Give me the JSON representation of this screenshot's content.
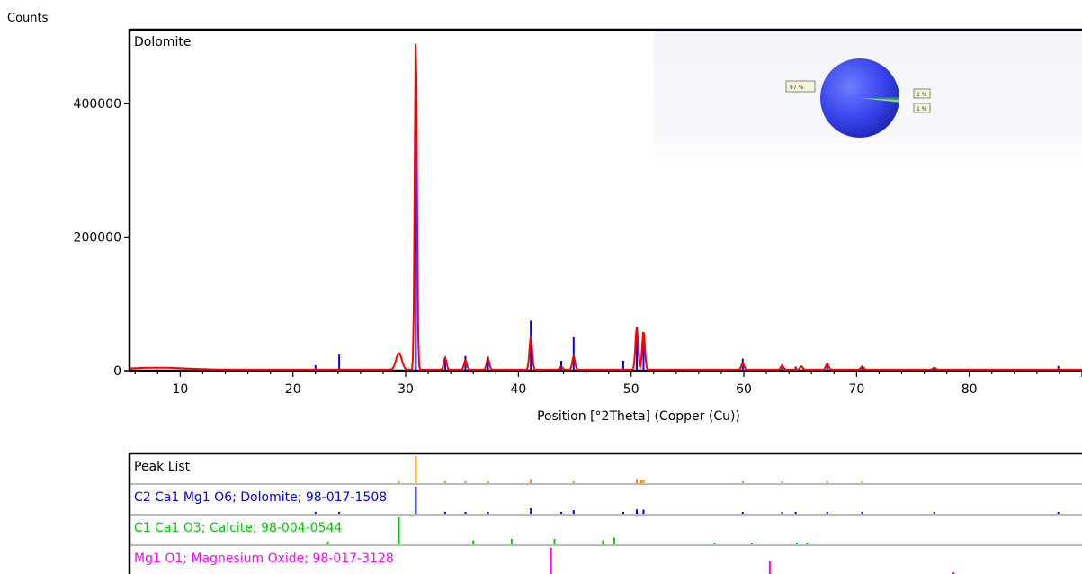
{
  "chart_data": {
    "type": "line",
    "title": "Dolomite",
    "ylabel": "Counts",
    "xlabel": "Position [°2Theta] (Copper (Cu))",
    "xlim": [
      5.5,
      90
    ],
    "ylim": [
      0,
      500000
    ],
    "x_ticks": [
      10,
      20,
      30,
      40,
      50,
      60,
      70,
      80
    ],
    "y_ticks": [
      0,
      200000,
      400000
    ],
    "grid": false,
    "observed_pattern": {
      "color": "#ff0000",
      "peaks": [
        {
          "x": 8.0,
          "y": 3000,
          "w": 2.5
        },
        {
          "x": 29.4,
          "y": 25000,
          "w": 0.25
        },
        {
          "x": 30.9,
          "y": 505000,
          "w": 0.1
        },
        {
          "x": 33.5,
          "y": 18000,
          "w": 0.12
        },
        {
          "x": 35.3,
          "y": 14000,
          "w": 0.12
        },
        {
          "x": 37.3,
          "y": 17000,
          "w": 0.12
        },
        {
          "x": 41.1,
          "y": 50000,
          "w": 0.12
        },
        {
          "x": 43.8,
          "y": 5000,
          "w": 0.12
        },
        {
          "x": 44.9,
          "y": 20000,
          "w": 0.12
        },
        {
          "x": 50.5,
          "y": 64000,
          "w": 0.12
        },
        {
          "x": 51.1,
          "y": 58000,
          "w": 0.12
        },
        {
          "x": 59.9,
          "y": 10000,
          "w": 0.12
        },
        {
          "x": 63.4,
          "y": 6000,
          "w": 0.12
        },
        {
          "x": 65.1,
          "y": 5000,
          "w": 0.12
        },
        {
          "x": 67.4,
          "y": 9000,
          "w": 0.12
        },
        {
          "x": 70.5,
          "y": 5000,
          "w": 0.12
        },
        {
          "x": 76.9,
          "y": 3000,
          "w": 0.12
        }
      ]
    },
    "calculated_lines": {
      "color": "#0000ff",
      "x": [
        22.0,
        24.1,
        30.9,
        33.5,
        35.3,
        37.3,
        41.1,
        43.8,
        44.9,
        49.3,
        50.5,
        51.1,
        59.9,
        63.4,
        64.6,
        67.4,
        70.5,
        76.9,
        87.9
      ],
      "y": [
        8000,
        24000,
        408000,
        17000,
        22000,
        21000,
        75000,
        15000,
        50000,
        15000,
        60000,
        55000,
        18000,
        10000,
        6000,
        8000,
        7000,
        4000,
        7000
      ]
    },
    "inset_pie": {
      "labels": [
        "97 %",
        "1 %",
        "1 %"
      ],
      "values": [
        97,
        1,
        1
      ],
      "colors": [
        "#3a46ee",
        "#3b8f5a",
        "#7fd6a0"
      ]
    },
    "peak_list_panel": {
      "rows": [
        {
          "label": "Peak List",
          "color": "#000000",
          "line_color": "#ff8c00",
          "x": [
            30.9,
            41.1,
            50.5,
            50.9,
            51.1,
            29.4,
            33.5,
            35.3,
            37.3,
            44.9,
            59.9,
            63.4,
            67.4,
            70.5
          ],
          "h": [
            1.0,
            0.15,
            0.15,
            0.12,
            0.14,
            0.06,
            0.05,
            0.05,
            0.05,
            0.06,
            0.05,
            0.04,
            0.04,
            0.04
          ]
        },
        {
          "label": "C2 Ca1 Mg1 O6; Dolomite; 98-017-1508",
          "color": "#0000ff",
          "line_color": "#0000ff",
          "x": [
            22.0,
            24.1,
            30.9,
            33.5,
            35.3,
            37.3,
            41.1,
            43.8,
            44.9,
            49.3,
            50.5,
            51.1,
            59.9,
            63.4,
            64.6,
            67.4,
            70.5,
            76.9,
            87.9
          ],
          "h": [
            0.03,
            0.07,
            1.0,
            0.05,
            0.06,
            0.06,
            0.2,
            0.04,
            0.13,
            0.04,
            0.16,
            0.15,
            0.05,
            0.03,
            0.02,
            0.03,
            0.02,
            0.02,
            0.02
          ]
        },
        {
          "label": "C1 Ca1 O3; Calcite; 98-004-0544",
          "color": "#00cc00",
          "line_color": "#00cc00",
          "x": [
            29.4,
            23.1,
            36.0,
            39.4,
            43.2,
            47.5,
            48.5,
            57.4,
            60.7,
            64.7,
            65.6
          ],
          "h": [
            1.0,
            0.1,
            0.15,
            0.2,
            0.2,
            0.15,
            0.25,
            0.05,
            0.05,
            0.04,
            0.04
          ]
        },
        {
          "label": "Mg1 O1; Magnesium Oxide; 98-017-3128",
          "color": "#ff00ff",
          "line_color": "#ff00ff",
          "x": [
            42.9,
            62.3,
            78.6
          ],
          "h": [
            1.0,
            0.5,
            0.1
          ]
        }
      ]
    }
  }
}
